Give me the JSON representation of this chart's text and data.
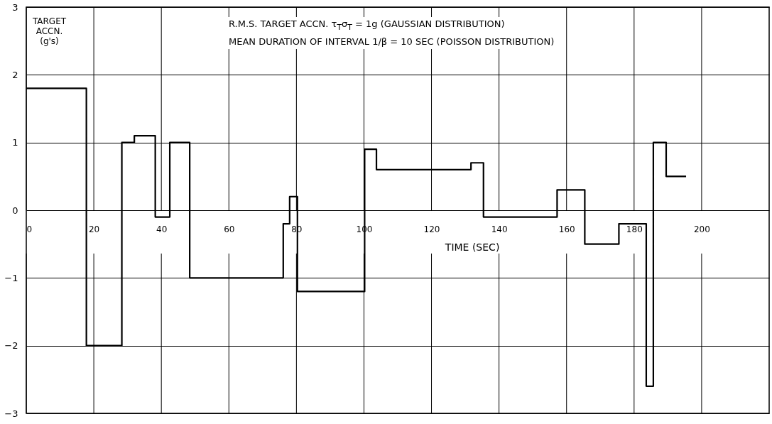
{
  "chart_data": {
    "type": "step",
    "xlabel": "TIME (SEC)",
    "ylabel": "TARGET ACCN. (g's)",
    "annotations": [
      "R.M.S. TARGET ACCN. τ$_{T}$σ$_{T}$ = 1g (GAUSSIAN DISTRIBUTION)",
      "MEAN DURATION OF INTERVAL 1/β = 10 SEC (POISSON DISTRIBUTION)"
    ],
    "x": [
      0,
      17.8,
      28.3,
      32,
      38.2,
      42.5,
      48.4,
      76.1,
      78,
      80.3,
      100.2,
      103.7,
      131.7,
      135.4,
      157.2,
      165.4,
      175.5,
      183.6,
      185.7,
      189.5,
      195.4
    ],
    "series": [
      {
        "color": "#000000",
        "values": [
          1.8,
          -2,
          1,
          1.1,
          -0.1,
          1,
          -1,
          -0.2,
          0.2,
          -1.2,
          0.9,
          0.6,
          0.7,
          -0.1,
          0.3,
          -0.5,
          -0.2,
          -2.6,
          1,
          0.5,
          0.5
        ]
      }
    ],
    "xlim": [
      0,
      220
    ],
    "xticks": [
      0,
      20,
      40,
      60,
      80,
      100,
      120,
      140,
      160,
      180,
      200
    ],
    "ylim": [
      -3,
      3
    ],
    "yticks": [
      -3,
      -2,
      -1,
      0,
      1,
      2,
      3
    ],
    "grid": true
  }
}
